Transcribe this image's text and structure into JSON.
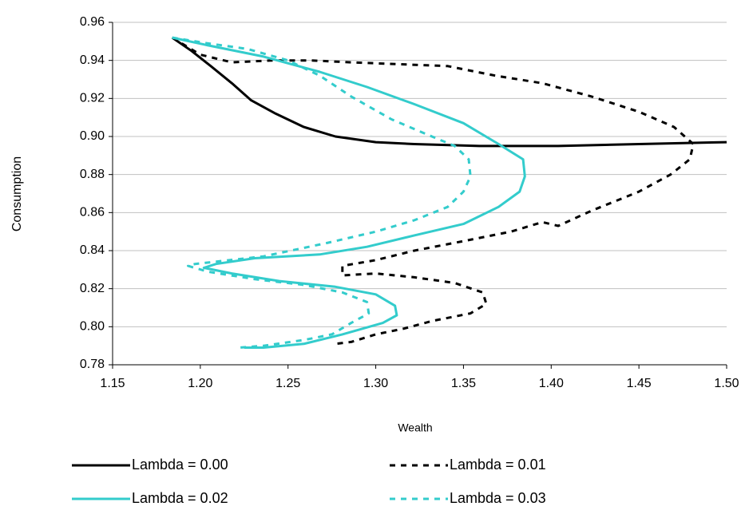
{
  "chart_data": {
    "type": "line",
    "x_label": "Wealth",
    "y_label": "Consumption",
    "xlim": [
      1.15,
      1.5
    ],
    "xticks": [
      1.15,
      {
        "value": 1.2,
        "label": "1.20"
      },
      1.25,
      {
        "value": 1.3,
        "label": "1.30"
      },
      1.35,
      {
        "value": 1.4,
        "label": "1.40"
      },
      1.45,
      {
        "value": 1.5,
        "label": "1.50"
      }
    ],
    "ylim": [
      0.78,
      0.96
    ],
    "yticks": [
      0.78,
      {
        "value": 0.8,
        "label": "0.80"
      },
      0.82,
      0.84,
      0.86,
      0.88,
      {
        "value": 0.9,
        "label": "0.90"
      },
      0.92,
      0.94,
      0.96
    ],
    "grid": true,
    "legend": "bottom",
    "series": [
      {
        "name": "Lambda = 0.00",
        "color": "#000000",
        "dash": false,
        "x": [
          1.184,
          1.195,
          1.206,
          1.218,
          1.229,
          1.243,
          1.259,
          1.277,
          1.3,
          1.322,
          1.359,
          1.404,
          1.45,
          1.5
        ],
        "values": [
          0.952,
          0.945,
          0.937,
          0.928,
          0.919,
          0.912,
          0.905,
          0.9,
          0.897,
          0.896,
          0.895,
          0.895,
          0.896,
          0.897
        ]
      },
      {
        "name": "Lambda = 0.01",
        "color": "#000000",
        "dash": true,
        "x": [
          1.184,
          1.2,
          1.218,
          1.241,
          1.263,
          1.286,
          1.313,
          1.341,
          1.368,
          1.395,
          1.423,
          1.45,
          1.47,
          1.481,
          1.479,
          1.468,
          1.45,
          1.423,
          1.404,
          1.395,
          1.377,
          1.35,
          1.322,
          1.3,
          1.281,
          1.281,
          1.3,
          1.322,
          1.345,
          1.361,
          1.363,
          1.354,
          1.332,
          1.316,
          1.3,
          1.286,
          1.277
        ],
        "values": [
          0.952,
          0.943,
          0.939,
          0.94,
          0.94,
          0.939,
          0.938,
          0.937,
          0.932,
          0.928,
          0.921,
          0.913,
          0.905,
          0.896,
          0.888,
          0.88,
          0.871,
          0.861,
          0.853,
          0.855,
          0.85,
          0.845,
          0.84,
          0.835,
          0.832,
          0.827,
          0.828,
          0.826,
          0.823,
          0.818,
          0.812,
          0.807,
          0.803,
          0.799,
          0.796,
          0.792,
          0.791
        ]
      },
      {
        "name": "Lambda = 0.02",
        "color": "#33cccc",
        "dash": false,
        "x": [
          1.184,
          1.204,
          1.236,
          1.268,
          1.295,
          1.322,
          1.35,
          1.37,
          1.384,
          1.385,
          1.382,
          1.37,
          1.35,
          1.322,
          1.295,
          1.268,
          1.231,
          1.209,
          1.202,
          1.218,
          1.245,
          1.277,
          1.3,
          1.311,
          1.312,
          1.304,
          1.281,
          1.259,
          1.236,
          1.225
        ],
        "values": [
          0.952,
          0.948,
          0.942,
          0.934,
          0.926,
          0.917,
          0.907,
          0.896,
          0.888,
          0.879,
          0.871,
          0.863,
          0.854,
          0.848,
          0.842,
          0.838,
          0.836,
          0.833,
          0.831,
          0.828,
          0.824,
          0.821,
          0.817,
          0.811,
          0.806,
          0.802,
          0.796,
          0.791,
          0.789,
          0.789
        ]
      },
      {
        "name": "Lambda = 0.03",
        "color": "#33cccc",
        "dash": true,
        "x": [
          1.184,
          1.204,
          1.227,
          1.25,
          1.268,
          1.286,
          1.309,
          1.332,
          1.345,
          1.353,
          1.354,
          1.35,
          1.341,
          1.322,
          1.3,
          1.272,
          1.236,
          1.197,
          1.193,
          1.204,
          1.231,
          1.259,
          1.281,
          1.295,
          1.296,
          1.286,
          1.275,
          1.259,
          1.236,
          1.222
        ],
        "values": [
          0.952,
          0.949,
          0.946,
          0.94,
          0.932,
          0.921,
          0.909,
          0.9,
          0.895,
          0.888,
          0.879,
          0.871,
          0.863,
          0.856,
          0.85,
          0.844,
          0.837,
          0.833,
          0.832,
          0.829,
          0.825,
          0.822,
          0.818,
          0.813,
          0.807,
          0.802,
          0.796,
          0.793,
          0.79,
          0.789
        ]
      }
    ]
  }
}
